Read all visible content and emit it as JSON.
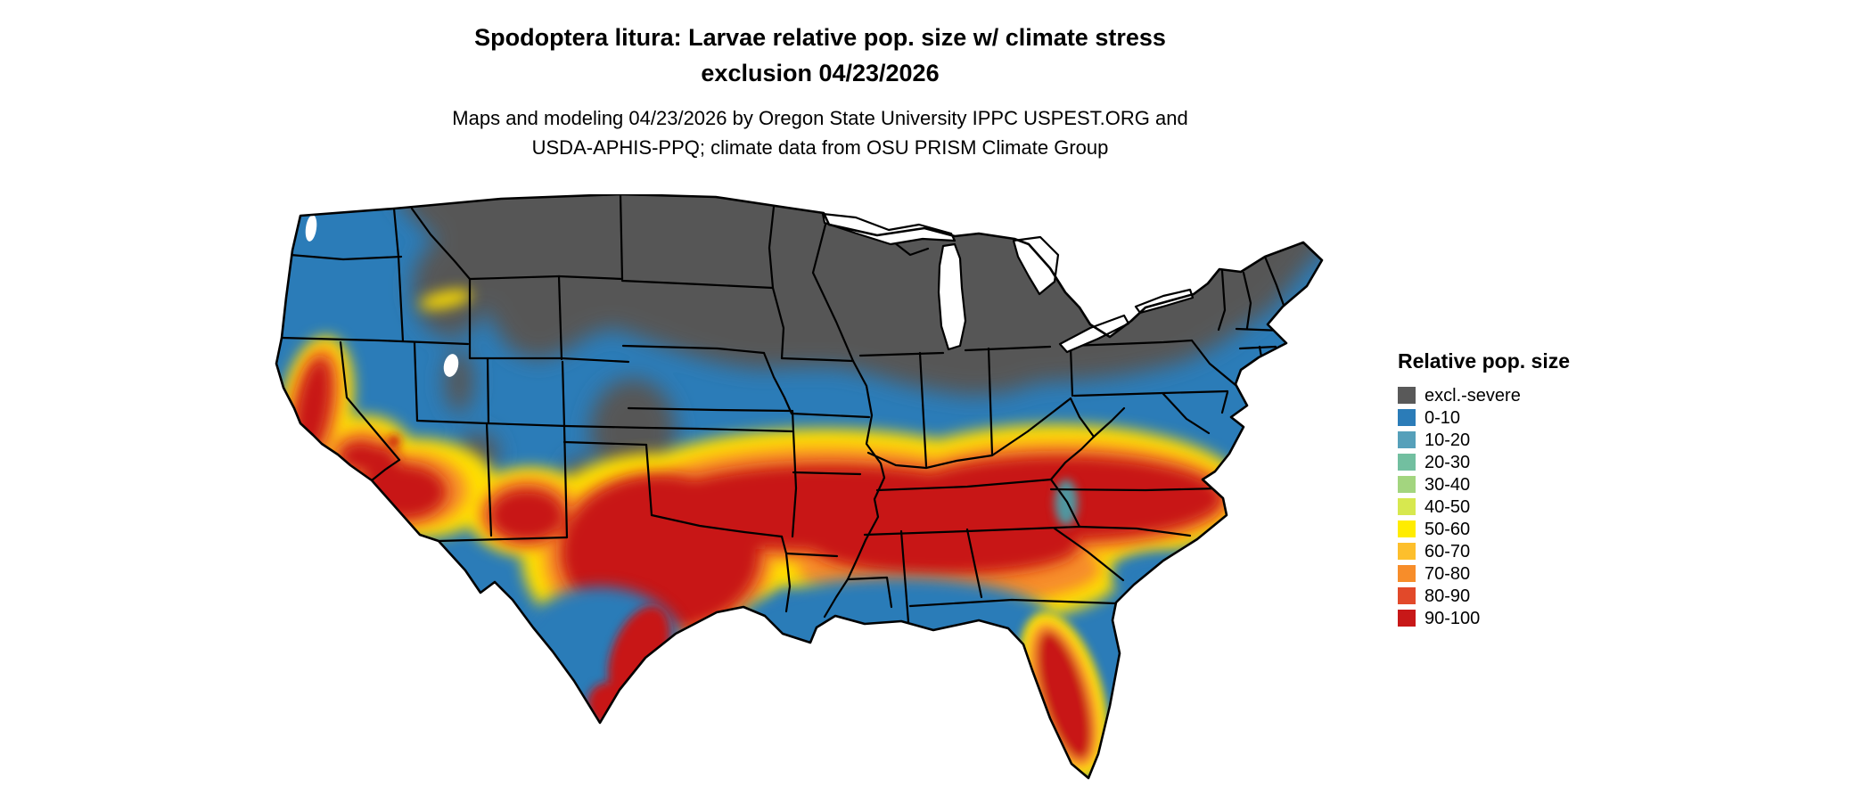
{
  "title": {
    "line1": "Spodoptera litura: Larvae relative pop. size w/ climate stress",
    "line2": "exclusion 04/23/2026"
  },
  "subtitle": {
    "line1": "Maps and modeling 04/23/2026 by Oregon State University IPPC USPEST.ORG and",
    "line2": "USDA-APHIS-PPQ; climate data from OSU PRISM Climate Group"
  },
  "legend": {
    "title": "Relative pop. size",
    "items": [
      {
        "label": "excl.-severe",
        "color": "#595959"
      },
      {
        "label": "0-10",
        "color": "#2b7cb8"
      },
      {
        "label": "10-20",
        "color": "#56a0ba"
      },
      {
        "label": "20-30",
        "color": "#72bfa0"
      },
      {
        "label": "30-40",
        "color": "#a3d57f"
      },
      {
        "label": "40-50",
        "color": "#d7e84f"
      },
      {
        "label": "50-60",
        "color": "#ffec00"
      },
      {
        "label": "60-70",
        "color": "#fdbf2c"
      },
      {
        "label": "70-80",
        "color": "#f78d2a"
      },
      {
        "label": "80-90",
        "color": "#e2492a"
      },
      {
        "label": "90-100",
        "color": "#c81818"
      }
    ]
  },
  "map": {
    "palette": {
      "gray": "#575757",
      "blue": "#2b7cb8",
      "teal": "#4f97a0",
      "yellow": "#ffdf00",
      "orange": "#f78d2a",
      "red": "#c81818",
      "water": "#ffffff",
      "border": "#000000"
    }
  }
}
